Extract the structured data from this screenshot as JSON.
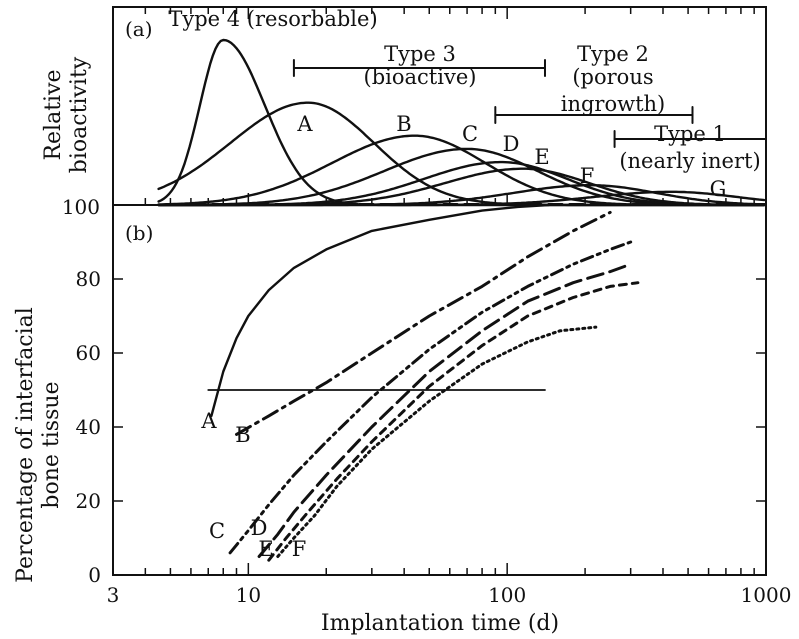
{
  "chart_data": [
    {
      "panel_label": "(a)",
      "type": "line",
      "ylabel": [
        "Relative",
        "bioactivity"
      ],
      "xscale": "log",
      "xlim": [
        3,
        1000
      ],
      "baseline_label": "100",
      "peak_height_unit": "relative (no numeric scale shown)",
      "series": [
        {
          "name": "Type 4 (resorbable)",
          "peak_x": 8,
          "peak_height": 1.0,
          "width": 0.16
        },
        {
          "name": "A",
          "peak_x": 17,
          "peak_height": 0.62,
          "width": 0.3
        },
        {
          "name": "B",
          "peak_x": 44,
          "peak_height": 0.42,
          "width": 0.32
        },
        {
          "name": "C",
          "peak_x": 70,
          "peak_height": 0.34,
          "width": 0.32
        },
        {
          "name": "D",
          "peak_x": 95,
          "peak_height": 0.26,
          "width": 0.3
        },
        {
          "name": "E",
          "peak_x": 115,
          "peak_height": 0.22,
          "width": 0.3
        },
        {
          "name": "F",
          "peak_x": 210,
          "peak_height": 0.12,
          "width": 0.3
        },
        {
          "name": "G",
          "peak_x": 430,
          "peak_height": 0.08,
          "width": 0.3
        }
      ],
      "bracket_labels": [
        {
          "lines": [
            "Type 3",
            "(bioactive)"
          ],
          "x_range": [
            15,
            140
          ]
        },
        {
          "lines": [
            "Type 2",
            "(porous",
            "ingrowth)"
          ],
          "x_range": [
            90,
            520
          ]
        },
        {
          "lines": [
            "Type 1",
            "(nearly inert)"
          ],
          "x_range": [
            260,
            1000
          ]
        }
      ],
      "curve_labels": [
        "A",
        "B",
        "C",
        "D",
        "E",
        "F",
        "G"
      ]
    },
    {
      "panel_label": "(b)",
      "type": "line",
      "xlabel": "Implantation time (d)",
      "ylabel": [
        "Percentage of interfacial",
        "bone tissue"
      ],
      "xscale": "log",
      "xlim": [
        3,
        1000
      ],
      "ylim": [
        0,
        100
      ],
      "x_ticks": [
        "3",
        "10",
        "100",
        "1000"
      ],
      "y_ticks": [
        "0",
        "20",
        "40",
        "60",
        "80",
        "100"
      ],
      "reference_line": {
        "y": 50,
        "x_range": [
          7,
          140
        ]
      },
      "series": [
        {
          "name": "A",
          "style": "solid",
          "x": [
            7.2,
            8,
            9,
            10,
            12,
            15,
            20,
            30,
            50,
            80,
            110,
            145
          ],
          "y": [
            43,
            55,
            64,
            70,
            77,
            83,
            88,
            93,
            96,
            98.5,
            99.5,
            100
          ]
        },
        {
          "name": "B",
          "style": "dash-dot",
          "x": [
            9,
            12,
            15,
            20,
            30,
            50,
            80,
            120,
            180,
            250
          ],
          "y": [
            38,
            43,
            47,
            52,
            60,
            70,
            78,
            86,
            93,
            98
          ]
        },
        {
          "name": "C",
          "style": "dash-dot-dot",
          "x": [
            8.5,
            10,
            12,
            15,
            20,
            30,
            50,
            80,
            120,
            180,
            250,
            300
          ],
          "y": [
            6,
            12,
            19,
            27,
            36,
            48,
            61,
            71,
            78,
            84,
            88,
            90
          ]
        },
        {
          "name": "D",
          "style": "long-dash",
          "x": [
            11,
            13,
            15,
            20,
            30,
            50,
            80,
            120,
            180,
            250,
            300
          ],
          "y": [
            5,
            11,
            17,
            27,
            40,
            55,
            66,
            74,
            79,
            82,
            84
          ]
        },
        {
          "name": "E",
          "style": "short-dash",
          "x": [
            12,
            14,
            17,
            22,
            30,
            50,
            80,
            120,
            180,
            250,
            320
          ],
          "y": [
            4,
            10,
            17,
            26,
            36,
            51,
            62,
            70,
            75,
            78,
            79
          ]
        },
        {
          "name": "F",
          "style": "dotted",
          "x": [
            13,
            15,
            18,
            22,
            30,
            50,
            80,
            120,
            160,
            220
          ],
          "y": [
            5,
            10,
            16,
            24,
            34,
            47,
            57,
            63,
            66,
            67
          ]
        }
      ],
      "curve_labels": [
        "A",
        "B",
        "C",
        "D",
        "E",
        "F"
      ]
    }
  ]
}
